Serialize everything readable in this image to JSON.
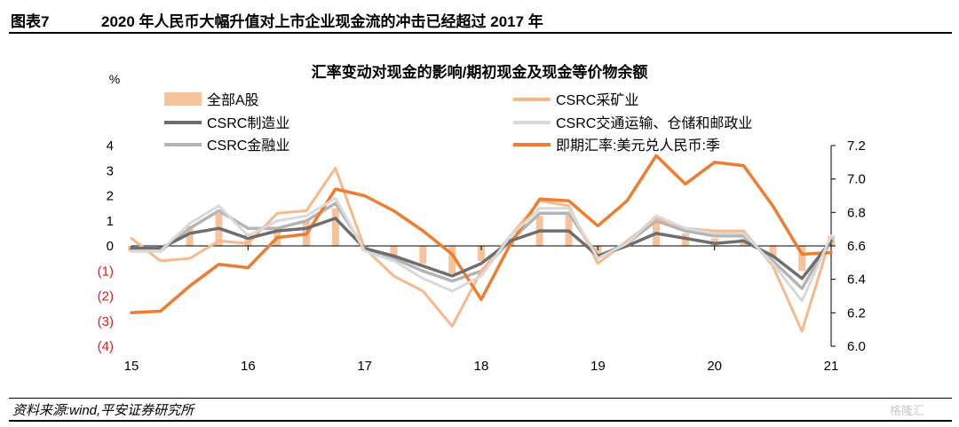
{
  "header": {
    "fig_label": "图表7",
    "fig_title": "2020 年人民币大幅升值对上市企业现金流的冲击已经超过 2017 年"
  },
  "footer": {
    "source": "资料来源:wind,平安证券研究所",
    "watermark": "格隆汇"
  },
  "chart_data": {
    "type": "bar+line",
    "title": "汇率变动对现金的影响/期初现金及现金等价物余额",
    "y_left_unit": "%",
    "y_left_lim": [
      -4,
      4
    ],
    "y_left_ticks": [
      "4",
      "3",
      "2",
      "1",
      "0",
      "(1)",
      "(2)",
      "(3)",
      "(4)"
    ],
    "y_right_lim": [
      6.0,
      7.2
    ],
    "y_right_ticks": [
      "7.2",
      "7.0",
      "6.8",
      "6.6",
      "6.4",
      "6.2",
      "6.0"
    ],
    "x_lim": [
      15,
      21
    ],
    "x_ticks": [
      "15",
      "16",
      "17",
      "18",
      "19",
      "20",
      "21"
    ],
    "negative_tick_color": "#e41a1c",
    "legend": [
      {
        "label": "全部A股",
        "kind": "bar",
        "color": "#f7c39d"
      },
      {
        "label": "CSRC采矿业",
        "kind": "line",
        "color": "#f7b88a"
      },
      {
        "label": "CSRC制造业",
        "kind": "line",
        "color": "#6e6e6e"
      },
      {
        "label": "CSRC交通运输、仓储和邮政业",
        "kind": "line",
        "color": "#d9d9d9"
      },
      {
        "label": "CSRC金融业",
        "kind": "line",
        "color": "#b4b4b4"
      },
      {
        "label": "即期汇率:美元兑人民币:季",
        "kind": "line",
        "color": "#ed7d31"
      }
    ],
    "x": [
      15.0,
      15.25,
      15.5,
      15.75,
      16.0,
      16.25,
      16.5,
      16.75,
      17.0,
      17.25,
      17.5,
      17.75,
      18.0,
      18.25,
      18.5,
      18.75,
      19.0,
      19.25,
      19.5,
      19.75,
      20.0,
      20.25,
      20.5,
      20.75,
      21.0
    ],
    "bars": {
      "name": "全部A股",
      "values": [
        -0.2,
        -0.2,
        0.8,
        1.3,
        0.5,
        0.7,
        1.0,
        1.5,
        -0.2,
        -0.4,
        -0.7,
        -1.1,
        -0.6,
        0.3,
        1.2,
        1.3,
        -0.4,
        0.1,
        1.0,
        0.5,
        0.3,
        0.3,
        -0.5,
        -1.0,
        0.4
      ]
    },
    "series": [
      {
        "name": "CSRC采矿业",
        "axis": "left",
        "values": [
          0.3,
          -0.6,
          -0.5,
          0.2,
          0.1,
          1.3,
          1.4,
          3.1,
          -0.1,
          -1.2,
          -1.8,
          -3.2,
          -1.0,
          0.4,
          1.8,
          1.6,
          -0.7,
          0.2,
          1.1,
          0.7,
          0.6,
          0.6,
          -0.8,
          -3.4,
          0.4
        ]
      },
      {
        "name": "CSRC制造业",
        "axis": "left",
        "values": [
          -0.1,
          -0.1,
          0.5,
          0.7,
          0.3,
          0.6,
          0.7,
          1.1,
          -0.1,
          -0.4,
          -0.8,
          -1.2,
          -0.7,
          0.2,
          0.6,
          0.6,
          -0.4,
          0.0,
          0.5,
          0.3,
          0.1,
          0.2,
          -0.4,
          -1.3,
          0.2
        ]
      },
      {
        "name": "CSRC交通运输、仓储和邮政业",
        "axis": "left",
        "values": [
          -0.2,
          -0.2,
          0.9,
          1.6,
          0.4,
          1.0,
          1.2,
          1.9,
          -0.2,
          -0.6,
          -1.3,
          -1.8,
          -1.2,
          0.4,
          1.5,
          1.5,
          -0.5,
          0.1,
          1.2,
          0.7,
          0.5,
          0.5,
          -0.7,
          -2.2,
          0.4
        ]
      },
      {
        "name": "CSRC金融业",
        "axis": "left",
        "values": [
          -0.2,
          -0.2,
          0.7,
          1.4,
          0.7,
          0.7,
          1.0,
          1.7,
          -0.1,
          -0.5,
          -1.0,
          -1.4,
          -1.0,
          0.2,
          1.3,
          1.3,
          -0.4,
          0.1,
          1.0,
          0.6,
          0.4,
          0.4,
          -0.6,
          -1.7,
          0.3
        ]
      },
      {
        "name": "即期汇率:美元兑人民币:季",
        "axis": "right",
        "values": [
          6.2,
          6.21,
          6.36,
          6.49,
          6.47,
          6.65,
          6.67,
          6.94,
          6.9,
          6.81,
          6.69,
          6.55,
          6.28,
          6.61,
          6.88,
          6.87,
          6.72,
          6.87,
          7.14,
          6.97,
          7.1,
          7.08,
          6.84,
          6.55,
          6.56
        ]
      }
    ]
  }
}
